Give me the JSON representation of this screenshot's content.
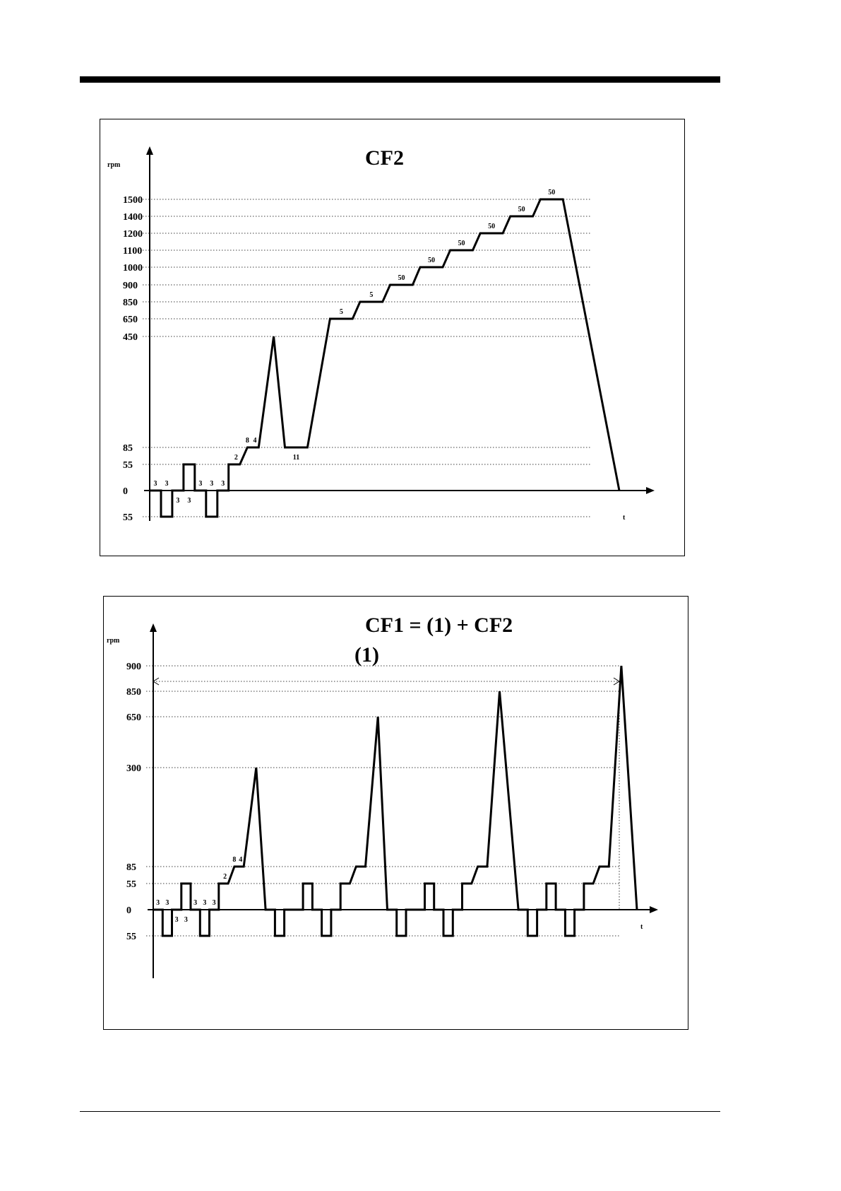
{
  "chart_data": [
    {
      "type": "line",
      "title": "CF2",
      "ylabel": "rpm",
      "xlabel": "t",
      "y_tick_labels": [
        {
          "label": "1500",
          "value": 1500
        },
        {
          "label": "1400",
          "value": 1400
        },
        {
          "label": "1200",
          "value": 1200
        },
        {
          "label": "1100",
          "value": 1100
        },
        {
          "label": "1000",
          "value": 1000
        },
        {
          "label": "900",
          "value": 900
        },
        {
          "label": "850",
          "value": 850
        },
        {
          "label": "650",
          "value": 650
        },
        {
          "label": "450",
          "value": 450
        },
        {
          "label": "85",
          "value": 85
        },
        {
          "label": "55",
          "value": 55
        },
        {
          "label": "0",
          "value": 0
        },
        {
          "label": "55",
          "value": -55
        }
      ],
      "gridlines": [
        1500,
        1400,
        1200,
        1100,
        1000,
        900,
        850,
        650,
        450,
        85,
        55,
        -55
      ],
      "series": [
        {
          "points": [
            [
              0,
              0
            ],
            [
              3,
              0
            ],
            [
              3,
              -55
            ],
            [
              6,
              -55
            ],
            [
              6,
              0
            ],
            [
              9,
              0
            ],
            [
              9,
              55
            ],
            [
              12,
              55
            ],
            [
              12,
              0
            ],
            [
              15,
              0
            ],
            [
              15,
              -55
            ],
            [
              18,
              -55
            ],
            [
              18,
              0
            ],
            [
              21,
              0
            ],
            [
              21,
              55
            ],
            [
              24,
              55
            ],
            [
              26,
              85
            ],
            [
              29,
              85
            ],
            [
              33,
              450
            ],
            [
              36,
              85
            ],
            [
              42,
              85
            ],
            [
              48,
              650
            ],
            [
              54,
              650
            ],
            [
              56,
              850
            ],
            [
              62,
              850
            ],
            [
              64,
              900
            ],
            [
              70,
              900
            ],
            [
              72,
              1000
            ],
            [
              78,
              1000
            ],
            [
              80,
              1100
            ],
            [
              86,
              1100
            ],
            [
              88,
              1200
            ],
            [
              94,
              1200
            ],
            [
              96,
              1400
            ],
            [
              102,
              1400
            ],
            [
              104,
              1500
            ],
            [
              110,
              1500
            ],
            [
              125,
              0
            ]
          ]
        }
      ],
      "duration_labels": [
        {
          "text": "3",
          "x": 1.5,
          "y": 0,
          "pos": "above"
        },
        {
          "text": "3",
          "x": 4.5,
          "y": 0,
          "pos": "above"
        },
        {
          "text": "3",
          "x": 7.5,
          "y": 0,
          "pos": "below"
        },
        {
          "text": "3",
          "x": 10.5,
          "y": 0,
          "pos": "below"
        },
        {
          "text": "3",
          "x": 13.5,
          "y": 0,
          "pos": "above"
        },
        {
          "text": "3",
          "x": 16.5,
          "y": 0,
          "pos": "above"
        },
        {
          "text": "3",
          "x": 19.5,
          "y": 0,
          "pos": "above"
        },
        {
          "text": "2",
          "x": 23,
          "y": 55,
          "pos": "above"
        },
        {
          "text": "8",
          "x": 26,
          "y": 85,
          "pos": "above"
        },
        {
          "text": "4",
          "x": 28,
          "y": 85,
          "pos": "above"
        },
        {
          "text": "11",
          "x": 39,
          "y": 85,
          "pos": "below"
        },
        {
          "text": "5",
          "x": 51,
          "y": 650,
          "pos": "above"
        },
        {
          "text": "5",
          "x": 59,
          "y": 850,
          "pos": "above"
        },
        {
          "text": "50",
          "x": 67,
          "y": 900,
          "pos": "above"
        },
        {
          "text": "50",
          "x": 75,
          "y": 1000,
          "pos": "above"
        },
        {
          "text": "50",
          "x": 83,
          "y": 1100,
          "pos": "above"
        },
        {
          "text": "50",
          "x": 91,
          "y": 1200,
          "pos": "above"
        },
        {
          "text": "50",
          "x": 99,
          "y": 1400,
          "pos": "above"
        },
        {
          "text": "50",
          "x": 107,
          "y": 1500,
          "pos": "above"
        }
      ]
    },
    {
      "type": "line",
      "title": "CF1 = (1) + CF2",
      "subtitle": "(1)",
      "ylabel": "rpm",
      "xlabel": "t",
      "y_tick_labels": [
        {
          "label": "900",
          "value": 900
        },
        {
          "label": "850",
          "value": 850
        },
        {
          "label": "650",
          "value": 650
        },
        {
          "label": "300",
          "value": 300
        },
        {
          "label": "85",
          "value": 85
        },
        {
          "label": "55",
          "value": 55
        },
        {
          "label": "0",
          "value": 0
        },
        {
          "label": "55",
          "value": -55
        }
      ],
      "gridlines": [
        900,
        850,
        650,
        300,
        85,
        55,
        -55
      ],
      "series": [
        {
          "points": [
            [
              0,
              0
            ],
            [
              3,
              0
            ],
            [
              3,
              -55
            ],
            [
              6,
              -55
            ],
            [
              6,
              0
            ],
            [
              9,
              0
            ],
            [
              9,
              55
            ],
            [
              12,
              55
            ],
            [
              12,
              0
            ],
            [
              15,
              0
            ],
            [
              15,
              -55
            ],
            [
              18,
              -55
            ],
            [
              18,
              0
            ],
            [
              21,
              0
            ],
            [
              21,
              55
            ],
            [
              24,
              55
            ],
            [
              26,
              85
            ],
            [
              29,
              85
            ],
            [
              33,
              300
            ],
            [
              36,
              0
            ],
            [
              39,
              0
            ],
            [
              39,
              -55
            ],
            [
              42,
              -55
            ],
            [
              42,
              0
            ],
            [
              48,
              0
            ],
            [
              48,
              55
            ],
            [
              51,
              55
            ],
            [
              51,
              0
            ],
            [
              54,
              0
            ],
            [
              54,
              -55
            ],
            [
              57,
              -55
            ],
            [
              57,
              0
            ],
            [
              60,
              0
            ],
            [
              60,
              55
            ],
            [
              63,
              55
            ],
            [
              65,
              85
            ],
            [
              68,
              85
            ],
            [
              72,
              650
            ],
            [
              75,
              0
            ],
            [
              78,
              0
            ],
            [
              78,
              -55
            ],
            [
              81,
              -55
            ],
            [
              81,
              0
            ],
            [
              87,
              0
            ],
            [
              87,
              55
            ],
            [
              90,
              55
            ],
            [
              90,
              0
            ],
            [
              93,
              0
            ],
            [
              93,
              -55
            ],
            [
              96,
              -55
            ],
            [
              96,
              0
            ],
            [
              99,
              0
            ],
            [
              99,
              55
            ],
            [
              102,
              55
            ],
            [
              104,
              85
            ],
            [
              107,
              85
            ],
            [
              111,
              850
            ],
            [
              117,
              0
            ],
            [
              120,
              0
            ],
            [
              120,
              -55
            ],
            [
              123,
              -55
            ],
            [
              123,
              0
            ],
            [
              126,
              0
            ],
            [
              126,
              55
            ],
            [
              129,
              55
            ],
            [
              129,
              0
            ],
            [
              132,
              0
            ],
            [
              132,
              -55
            ],
            [
              135,
              -55
            ],
            [
              135,
              0
            ],
            [
              138,
              0
            ],
            [
              138,
              55
            ],
            [
              141,
              55
            ],
            [
              143,
              85
            ],
            [
              146,
              85
            ],
            [
              150,
              900
            ],
            [
              155,
              0
            ]
          ]
        }
      ],
      "duration_labels": [
        {
          "text": "3",
          "x": 1.5,
          "y": 0,
          "pos": "above"
        },
        {
          "text": "3",
          "x": 4.5,
          "y": 0,
          "pos": "above"
        },
        {
          "text": "3",
          "x": 7.5,
          "y": 0,
          "pos": "below"
        },
        {
          "text": "3",
          "x": 10.5,
          "y": 0,
          "pos": "below"
        },
        {
          "text": "3",
          "x": 13.5,
          "y": 0,
          "pos": "above"
        },
        {
          "text": "3",
          "x": 16.5,
          "y": 0,
          "pos": "above"
        },
        {
          "text": "3",
          "x": 19.5,
          "y": 0,
          "pos": "above"
        },
        {
          "text": "2",
          "x": 23,
          "y": 55,
          "pos": "above"
        },
        {
          "text": "8",
          "x": 26,
          "y": 85,
          "pos": "above"
        },
        {
          "text": "4",
          "x": 28,
          "y": 85,
          "pos": "above"
        }
      ]
    }
  ]
}
